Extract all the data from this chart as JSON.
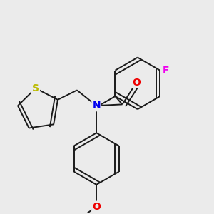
{
  "background_color": "#ebebeb",
  "bond_color": "#1a1a1a",
  "bond_width": 1.4,
  "atom_labels": {
    "N": {
      "color": "#0000ee",
      "fontsize": 10
    },
    "O": {
      "color": "#ee0000",
      "fontsize": 10
    },
    "S": {
      "color": "#bbbb00",
      "fontsize": 10
    },
    "F": {
      "color": "#ee00ee",
      "fontsize": 10
    }
  },
  "figsize": [
    3.0,
    3.0
  ],
  "dpi": 100
}
